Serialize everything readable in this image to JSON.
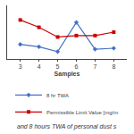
{
  "chart_data": {
    "type": "line",
    "x": [
      3,
      4,
      5,
      6,
      7,
      8
    ],
    "series": [
      {
        "name": "8 hr TWA",
        "color": "#4472C4",
        "marker": "diamond",
        "values": [
          0.3,
          0.25,
          0.15,
          0.75,
          0.2,
          0.22
        ]
      },
      {
        "name": "Permissible Limit Value [mg/m",
        "color": "#CC0000",
        "marker": "square",
        "values": [
          0.8,
          0.65,
          0.45,
          0.48,
          0.48,
          0.55
        ]
      }
    ],
    "x_label": "Samples",
    "annotations": [
      "and 8 hours TWA of personal dust s"
    ],
    "xlim": [
      2.3,
      8.7
    ],
    "xticks": [
      3,
      4,
      5,
      6,
      7,
      8
    ],
    "ylim": [
      0,
      1.1
    ],
    "tick_labels": "x",
    "grid": false,
    "legend": "bottom"
  }
}
